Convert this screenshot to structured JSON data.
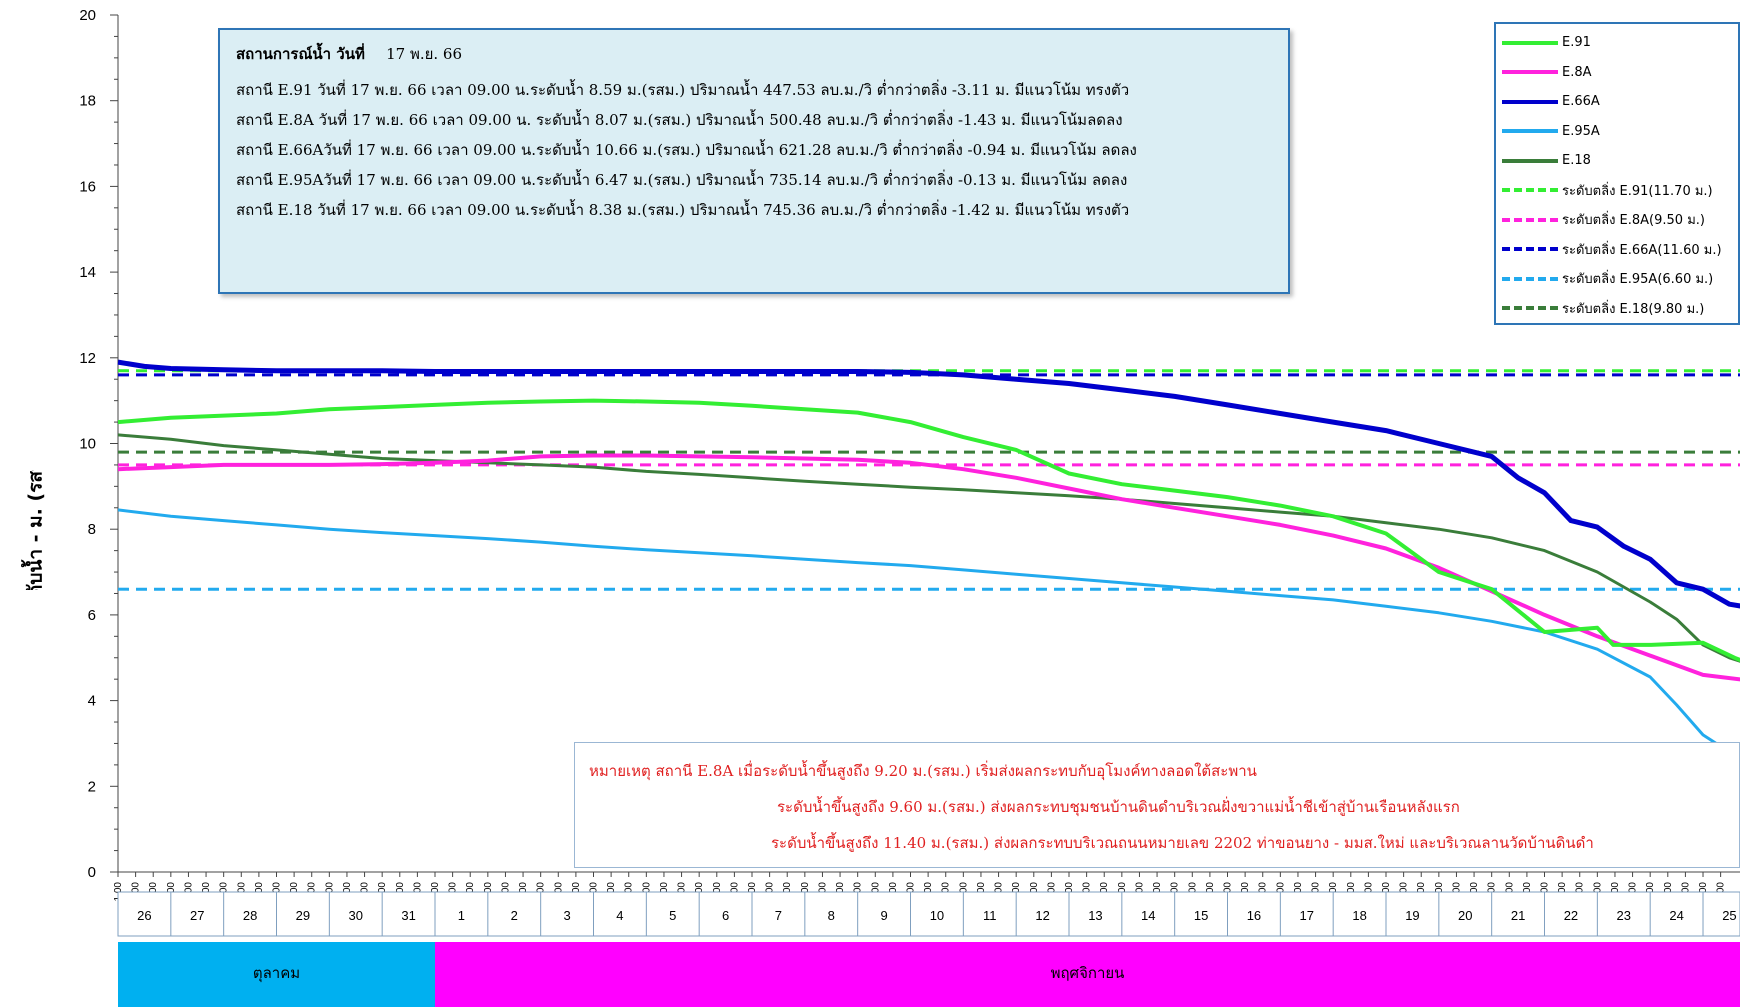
{
  "chart_data": {
    "type": "line",
    "ylabel": "ระดับน้ำ - ม. (รสม.)",
    "ylim": [
      0,
      20
    ],
    "yticks": [
      0,
      2,
      4,
      6,
      8,
      10,
      12,
      14,
      16,
      18,
      20
    ],
    "x_time_labels": [
      "1.00",
      "9.00",
      "17.00"
    ],
    "days": [
      "26",
      "27",
      "28",
      "29",
      "30",
      "31",
      "1",
      "2",
      "3",
      "4",
      "5",
      "6",
      "7",
      "8",
      "9",
      "10",
      "11",
      "12",
      "13",
      "14",
      "15",
      "16",
      "17",
      "18",
      "19",
      "20",
      "21",
      "22",
      "23",
      "24",
      "25"
    ],
    "months": [
      {
        "name": "ตุลาคม",
        "days": 6,
        "color": "#00b0f0"
      },
      {
        "name": "พฤศจิกายน",
        "days": 25,
        "color": "#ff00ff"
      }
    ],
    "x_unit": "day index (0 = 26 Oct 1.00)",
    "series": [
      {
        "name": "E.91",
        "color": "#33ee33",
        "width": 4,
        "dash": false,
        "points": [
          [
            0,
            10.5
          ],
          [
            1,
            10.6
          ],
          [
            2,
            10.65
          ],
          [
            3,
            10.7
          ],
          [
            4,
            10.8
          ],
          [
            5,
            10.85
          ],
          [
            6,
            10.9
          ],
          [
            7,
            10.95
          ],
          [
            8,
            10.98
          ],
          [
            9,
            11.0
          ],
          [
            10,
            10.98
          ],
          [
            11,
            10.95
          ],
          [
            12,
            10.88
          ],
          [
            13,
            10.8
          ],
          [
            14,
            10.72
          ],
          [
            15,
            10.5
          ],
          [
            16,
            10.15
          ],
          [
            17,
            9.85
          ],
          [
            18,
            9.3
          ],
          [
            19,
            9.05
          ],
          [
            20,
            8.9
          ],
          [
            21,
            8.75
          ],
          [
            22,
            8.55
          ],
          [
            23,
            8.3
          ],
          [
            24,
            7.9
          ],
          [
            25,
            7.0
          ],
          [
            26,
            6.6
          ],
          [
            27,
            5.6
          ],
          [
            28,
            5.7
          ],
          [
            28.3,
            5.3
          ],
          [
            29,
            5.3
          ],
          [
            30,
            5.35
          ],
          [
            30.6,
            5.0
          ],
          [
            31,
            4.8
          ]
        ]
      },
      {
        "name": "E.8A",
        "color": "#ff22dd",
        "width": 4,
        "dash": false,
        "points": [
          [
            0,
            9.4
          ],
          [
            1,
            9.45
          ],
          [
            2,
            9.5
          ],
          [
            3,
            9.5
          ],
          [
            4,
            9.5
          ],
          [
            5,
            9.52
          ],
          [
            6,
            9.55
          ],
          [
            7,
            9.6
          ],
          [
            8,
            9.7
          ],
          [
            9,
            9.72
          ],
          [
            10,
            9.72
          ],
          [
            11,
            9.7
          ],
          [
            12,
            9.68
          ],
          [
            13,
            9.65
          ],
          [
            14,
            9.62
          ],
          [
            15,
            9.55
          ],
          [
            16,
            9.4
          ],
          [
            17,
            9.2
          ],
          [
            18,
            8.95
          ],
          [
            19,
            8.7
          ],
          [
            20,
            8.5
          ],
          [
            21,
            8.3
          ],
          [
            22,
            8.1
          ],
          [
            23,
            7.85
          ],
          [
            24,
            7.55
          ],
          [
            25,
            7.1
          ],
          [
            26,
            6.55
          ],
          [
            27,
            6.0
          ],
          [
            28,
            5.5
          ],
          [
            29,
            5.05
          ],
          [
            30,
            4.6
          ],
          [
            31,
            4.45
          ]
        ]
      },
      {
        "name": "E.66A",
        "color": "#0000cc",
        "width": 5,
        "dash": false,
        "points": [
          [
            0,
            11.9
          ],
          [
            0.5,
            11.8
          ],
          [
            1,
            11.75
          ],
          [
            2,
            11.72
          ],
          [
            3,
            11.7
          ],
          [
            4,
            11.7
          ],
          [
            5,
            11.7
          ],
          [
            6,
            11.68
          ],
          [
            7,
            11.68
          ],
          [
            8,
            11.68
          ],
          [
            9,
            11.68
          ],
          [
            10,
            11.68
          ],
          [
            11,
            11.68
          ],
          [
            12,
            11.68
          ],
          [
            13,
            11.68
          ],
          [
            14,
            11.68
          ],
          [
            15,
            11.66
          ],
          [
            16,
            11.6
          ],
          [
            17,
            11.5
          ],
          [
            18,
            11.4
          ],
          [
            19,
            11.25
          ],
          [
            20,
            11.1
          ],
          [
            21,
            10.9
          ],
          [
            22,
            10.7
          ],
          [
            23,
            10.5
          ],
          [
            24,
            10.3
          ],
          [
            25,
            10.0
          ],
          [
            26,
            9.7
          ],
          [
            26.5,
            9.2
          ],
          [
            27,
            8.85
          ],
          [
            27.5,
            8.2
          ],
          [
            28,
            8.05
          ],
          [
            28.5,
            7.6
          ],
          [
            29,
            7.3
          ],
          [
            29.5,
            6.75
          ],
          [
            30,
            6.6
          ],
          [
            30.5,
            6.25
          ],
          [
            31,
            6.15
          ]
        ]
      },
      {
        "name": "E.95A",
        "color": "#22aaee",
        "width": 3,
        "dash": false,
        "points": [
          [
            0,
            8.45
          ],
          [
            1,
            8.3
          ],
          [
            2,
            8.2
          ],
          [
            3,
            8.1
          ],
          [
            4,
            8.0
          ],
          [
            5,
            7.92
          ],
          [
            6,
            7.85
          ],
          [
            7,
            7.78
          ],
          [
            8,
            7.7
          ],
          [
            9,
            7.6
          ],
          [
            10,
            7.52
          ],
          [
            11,
            7.45
          ],
          [
            12,
            7.38
          ],
          [
            13,
            7.3
          ],
          [
            14,
            7.22
          ],
          [
            15,
            7.15
          ],
          [
            16,
            7.05
          ],
          [
            17,
            6.95
          ],
          [
            18,
            6.85
          ],
          [
            19,
            6.75
          ],
          [
            20,
            6.65
          ],
          [
            21,
            6.55
          ],
          [
            22,
            6.45
          ],
          [
            23,
            6.35
          ],
          [
            24,
            6.2
          ],
          [
            25,
            6.05
          ],
          [
            26,
            5.85
          ],
          [
            27,
            5.6
          ],
          [
            28,
            5.2
          ],
          [
            29,
            4.55
          ],
          [
            29.5,
            3.9
          ],
          [
            30,
            3.2
          ],
          [
            30.5,
            2.8
          ],
          [
            31,
            2.7
          ]
        ]
      },
      {
        "name": "E.18",
        "color": "#3a7d3a",
        "width": 3,
        "dash": false,
        "points": [
          [
            0,
            10.2
          ],
          [
            1,
            10.1
          ],
          [
            2,
            9.95
          ],
          [
            3,
            9.85
          ],
          [
            4,
            9.75
          ],
          [
            5,
            9.65
          ],
          [
            6,
            9.6
          ],
          [
            7,
            9.55
          ],
          [
            8,
            9.5
          ],
          [
            9,
            9.45
          ],
          [
            10,
            9.35
          ],
          [
            11,
            9.28
          ],
          [
            12,
            9.2
          ],
          [
            13,
            9.12
          ],
          [
            14,
            9.05
          ],
          [
            15,
            8.98
          ],
          [
            16,
            8.92
          ],
          [
            17,
            8.85
          ],
          [
            18,
            8.78
          ],
          [
            19,
            8.7
          ],
          [
            20,
            8.6
          ],
          [
            21,
            8.5
          ],
          [
            22,
            8.4
          ],
          [
            23,
            8.3
          ],
          [
            24,
            8.15
          ],
          [
            25,
            8.0
          ],
          [
            26,
            7.8
          ],
          [
            27,
            7.5
          ],
          [
            28,
            7.0
          ],
          [
            29,
            6.3
          ],
          [
            29.5,
            5.9
          ],
          [
            30,
            5.3
          ],
          [
            30.5,
            5.0
          ],
          [
            31,
            4.8
          ]
        ]
      },
      {
        "name": "ระดับตลิ่ง E.91(11.70 ม.)",
        "color": "#33ee33",
        "width": 3,
        "dash": true,
        "points": [
          [
            0,
            11.7
          ],
          [
            31,
            11.7
          ]
        ]
      },
      {
        "name": "ระดับตลิ่ง E.8A(9.50 ม.)",
        "color": "#ff22dd",
        "width": 3,
        "dash": true,
        "points": [
          [
            0,
            9.5
          ],
          [
            31,
            9.5
          ]
        ]
      },
      {
        "name": "ระดับตลิ่ง E.66A(11.60 ม.)",
        "color": "#0000cc",
        "width": 3,
        "dash": true,
        "points": [
          [
            0,
            11.6
          ],
          [
            31,
            11.6
          ]
        ]
      },
      {
        "name": "ระดับตลิ่ง E.95A(6.60 ม.)",
        "color": "#22aaee",
        "width": 3,
        "dash": true,
        "points": [
          [
            0,
            6.6
          ],
          [
            31,
            6.6
          ]
        ]
      },
      {
        "name": "ระดับตลิ่ง E.18(9.80 ม.)",
        "color": "#3a7d3a",
        "width": 3,
        "dash": true,
        "points": [
          [
            0,
            9.8
          ],
          [
            31,
            9.8
          ]
        ]
      }
    ],
    "legend_position": "top-right",
    "grid": false
  },
  "status": {
    "title": "สถานการณ์น้ำ วันที่",
    "date": "17 พ.ย. 66",
    "lines": [
      "สถานี E.91 วันที่   17 พ.ย. 66  เวลา 09.00 น.ระดับน้ำ  8.59   ม.(รสม.)  ปริมาณน้ำ 447.53  ลบ.ม./วิ   ต่ำกว่าตลิ่ง   -3.11 ม. มีแนวโน้ม ทรงตัว",
      "สถานี E.8A วันที่   17 พ.ย. 66  เวลา 09.00 น. ระดับน้ำ 8.07    ม.(รสม.)  ปริมาณน้ำ  500.48  ลบ.ม./วิ  ต่ำกว่าตลิ่ง   -1.43 ม. มีแนวโน้มลดลง",
      "สถานี E.66Aวันที่ 17 พ.ย. 66  เวลา  09.00 น.ระดับน้ำ  10.66 ม.(รสม.)  ปริมาณน้ำ  621.28  ลบ.ม./วิ   ต่ำกว่าตลิ่ง    -0.94 ม. มีแนวโน้ม ลดลง",
      "สถานี E.95Aวันที่  17 พ.ย. 66  เวลา  09.00 น.ระดับน้ำ   6.47  ม.(รสม.)  ปริมาณน้ำ  735.14  ลบ.ม./วิ    ต่ำกว่าตลิ่ง    -0.13 ม. มีแนวโน้ม ลดลง",
      "สถานี E.18 วันที่   17 พ.ย. 66  เวลา  09.00 น.ระดับน้ำ   8.38  ม.(รสม.)  ปริมาณน้ำ  745.36  ลบ.ม./วิ   ต่ำกว่าตลิ่ง  -1.42   ม. มีแนวโน้ม  ทรงตัว"
    ]
  },
  "note": {
    "lines": [
      "หมายเหตุ  สถานี E.8A เมื่อระดับน้ำขึ้นสูงถึง 9.20 ม.(รสม.) เริ่มส่งผลกระทบกับอุโมงค์ทางลอดใต้สะพาน",
      "ระดับน้ำขึ้นสูงถึง 9.60 ม.(รสม.) ส่งผลกระทบชุมชนบ้านดินดำบริเวณฝั่งขวาแม่น้ำชีเข้าสู่บ้านเรือนหลังแรก",
      "ระดับน้ำขึ้นสูงถึง 11.40 ม.(รสม.) ส่งผลกระทบบริเวณถนนหมายเลข 2202 ท่าขอนยาง - มมส.ใหม่ และบริเวณลานวัดบ้านดินดำ"
    ]
  }
}
